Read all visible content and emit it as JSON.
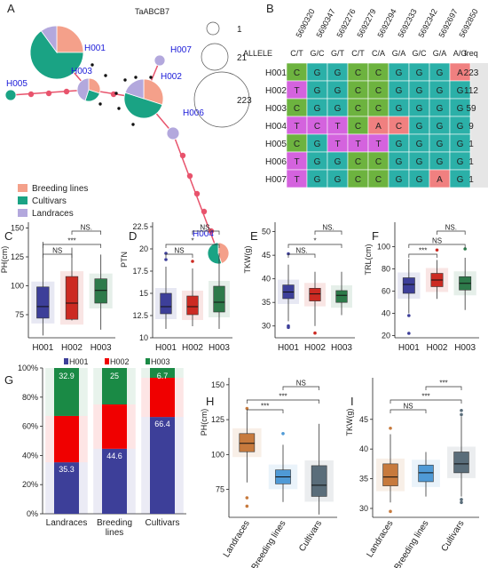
{
  "panels": {
    "A": {
      "letter": "A",
      "title": "TaABCB7",
      "nodes": [
        {
          "id": "H001",
          "label": "H001",
          "breeding": 0.25,
          "cultivars": 0.65,
          "landraces": 0.1
        },
        {
          "id": "H002",
          "label": "H002",
          "breeding": 0.3,
          "cultivars": 0.5,
          "landraces": 0.2
        },
        {
          "id": "H003",
          "label": "H003",
          "breeding": 0.3,
          "cultivars": 0.25,
          "landraces": 0.45
        },
        {
          "id": "H004",
          "label": "H004",
          "breeding": 0.45,
          "cultivars": 0.55,
          "landraces": 0.0
        },
        {
          "id": "H005",
          "label": "H005",
          "breeding": 0.0,
          "cultivars": 1.0,
          "landraces": 0.0
        },
        {
          "id": "H006",
          "label": "H006",
          "breeding": 0.0,
          "cultivars": 0.0,
          "landraces": 1.0
        },
        {
          "id": "H007",
          "label": "H007",
          "breeding": 0.0,
          "cultivars": 0.0,
          "landraces": 1.0
        }
      ],
      "size_legend": [
        "1",
        "21",
        "223"
      ],
      "legend": [
        {
          "label": "Breeding lines",
          "color": "#f4a08a"
        },
        {
          "label": "Cultivars",
          "color": "#1aa384"
        },
        {
          "label": "Landraces",
          "color": "#b3a8dd"
        }
      ]
    },
    "B": {
      "letter": "B",
      "positions": [
        "5690320",
        "5690347",
        "5692276",
        "5692279",
        "5692294",
        "5692333",
        "5692342",
        "5692697",
        "5692850"
      ],
      "allele_label": "ALLELE",
      "alleles": [
        "C/T",
        "G/C",
        "G/T",
        "C/T",
        "C/A",
        "G/A",
        "G/C",
        "G/A",
        "A/G"
      ],
      "freq_label": "freq",
      "rows": [
        {
          "name": "H001",
          "bases": [
            "C",
            "G",
            "G",
            "C",
            "C",
            "G",
            "G",
            "G",
            "A"
          ],
          "freq": "223"
        },
        {
          "name": "H002",
          "bases": [
            "T",
            "G",
            "G",
            "C",
            "C",
            "G",
            "G",
            "G",
            "G"
          ],
          "freq": "112"
        },
        {
          "name": "H003",
          "bases": [
            "C",
            "G",
            "G",
            "C",
            "C",
            "G",
            "G",
            "G",
            "G"
          ],
          "freq": "59"
        },
        {
          "name": "H004",
          "bases": [
            "T",
            "C",
            "T",
            "C",
            "A",
            "C",
            "G",
            "G",
            "G"
          ],
          "freq": "9"
        },
        {
          "name": "H005",
          "bases": [
            "C",
            "G",
            "T",
            "T",
            "T",
            "G",
            "G",
            "G",
            "G"
          ],
          "freq": "1"
        },
        {
          "name": "H006",
          "bases": [
            "T",
            "G",
            "G",
            "C",
            "C",
            "G",
            "G",
            "G",
            "G"
          ],
          "freq": "1"
        },
        {
          "name": "H007",
          "bases": [
            "T",
            "G",
            "G",
            "C",
            "C",
            "G",
            "G",
            "A",
            "G"
          ],
          "freq": "1"
        }
      ],
      "colors": {
        "C": "#2bb0a8",
        "T": "#d463de",
        "G": "#2bb0a8",
        "A": "#f08080",
        "C_green": "#6db33f"
      }
    }
  },
  "chart_data": [
    {
      "panel": "C",
      "type": "box",
      "categories": [
        "H001",
        "H002",
        "H003"
      ],
      "ylabel": "PH(cm)",
      "ylim": [
        55,
        155
      ],
      "yticks": [
        75,
        100,
        125,
        150
      ],
      "boxes": [
        {
          "min": 57,
          "q1": 72,
          "median": 82,
          "q3": 99,
          "max": 138,
          "color": "#3d3f99",
          "outliers": []
        },
        {
          "min": 70,
          "q1": 71,
          "median": 85,
          "q3": 108,
          "max": 133,
          "color": "#cc2a22",
          "outliers": []
        },
        {
          "min": 62,
          "q1": 85,
          "median": 96,
          "q3": 106,
          "max": 127,
          "color": "#2d7a4a",
          "outliers": []
        }
      ],
      "sig": [
        {
          "from": 0,
          "to": 1,
          "label": "NS"
        },
        {
          "from": 0,
          "to": 2,
          "label": "***"
        },
        {
          "from": 1,
          "to": 2,
          "label": "NS."
        }
      ]
    },
    {
      "panel": "D",
      "type": "box",
      "categories": [
        "H001",
        "H002",
        "H003"
      ],
      "ylabel": "PTN",
      "ylim": [
        10,
        23
      ],
      "yticks": [
        10,
        12.5,
        15,
        17.5,
        20,
        22.5
      ],
      "boxes": [
        {
          "min": 11,
          "q1": 12.7,
          "median": 13.5,
          "q3": 15,
          "max": 18,
          "color": "#3d3f99",
          "outliers": [
            19.5,
            18.8
          ]
        },
        {
          "min": 11.3,
          "q1": 12.6,
          "median": 13.5,
          "q3": 14.7,
          "max": 17.8,
          "color": "#cc2a22",
          "outliers": [
            18.6
          ]
        },
        {
          "min": 11,
          "q1": 12.9,
          "median": 14,
          "q3": 15.8,
          "max": 19.5,
          "color": "#2d7a4a",
          "outliers": []
        }
      ],
      "sig": [
        {
          "from": 0,
          "to": 1,
          "label": "NS"
        },
        {
          "from": 0,
          "to": 2,
          "label": "*"
        },
        {
          "from": 1,
          "to": 2,
          "label": "NS."
        }
      ]
    },
    {
      "panel": "E",
      "type": "box",
      "categories": [
        "H001",
        "H002",
        "H003"
      ],
      "ylabel": "TKW(g)",
      "ylim": [
        27.5,
        52
      ],
      "yticks": [
        30,
        35,
        40,
        45,
        50
      ],
      "boxes": [
        {
          "min": 31,
          "q1": 35.8,
          "median": 37.2,
          "q3": 38.7,
          "max": 43,
          "color": "#3d3f99",
          "outliers": [
            45.3,
            30,
            29.7
          ]
        },
        {
          "min": 30,
          "q1": 35.3,
          "median": 36.8,
          "q3": 38,
          "max": 41.5,
          "color": "#cc2a22",
          "outliers": [
            28.5
          ]
        },
        {
          "min": 32.3,
          "q1": 35,
          "median": 36.5,
          "q3": 37.5,
          "max": 41.5,
          "color": "#2d7a4a",
          "outliers": []
        }
      ],
      "sig": [
        {
          "from": 0,
          "to": 1,
          "label": "NS."
        },
        {
          "from": 0,
          "to": 2,
          "label": "*"
        },
        {
          "from": 1,
          "to": 2,
          "label": "NS."
        }
      ]
    },
    {
      "panel": "F",
      "type": "box",
      "categories": [
        "H001",
        "H002",
        "H003"
      ],
      "ylabel": "TRL(cm)",
      "ylim": [
        18,
        122
      ],
      "yticks": [
        20,
        40,
        60,
        80,
        100
      ],
      "boxes": [
        {
          "min": 40,
          "q1": 58,
          "median": 66,
          "q3": 72,
          "max": 89,
          "color": "#3d3f99",
          "outliers": [
            38,
            22
          ]
        },
        {
          "min": 53,
          "q1": 64,
          "median": 70,
          "q3": 76,
          "max": 88,
          "color": "#cc2a22",
          "outliers": [
            97
          ]
        },
        {
          "min": 43,
          "q1": 61,
          "median": 67,
          "q3": 73,
          "max": 90,
          "color": "#2d7a4a",
          "outliers": [
            98
          ]
        }
      ],
      "sig": [
        {
          "from": 0,
          "to": 1,
          "label": "***"
        },
        {
          "from": 0,
          "to": 2,
          "label": "NS"
        },
        {
          "from": 1,
          "to": 2,
          "label": "NS."
        }
      ]
    },
    {
      "panel": "G",
      "type": "stacked-bar",
      "categories": [
        "Landraces",
        "Breeding lines",
        "Cultivars"
      ],
      "ylim": [
        0,
        100
      ],
      "yticks": [
        "0%",
        "20%",
        "40%",
        "60%",
        "80%",
        "100%"
      ],
      "series": [
        {
          "name": "H001",
          "color": "#3d3f99",
          "values": [
            35.3,
            44.6,
            66.4
          ]
        },
        {
          "name": "H002",
          "color": "#f00000",
          "values": [
            31.8,
            30.4,
            26.9
          ]
        },
        {
          "name": "H003",
          "color": "#1a8a45",
          "values": [
            32.9,
            25,
            6.7
          ]
        }
      ],
      "labels": [
        {
          "series": 0,
          "cat": 0,
          "text": "35.3"
        },
        {
          "series": 0,
          "cat": 1,
          "text": "44.6"
        },
        {
          "series": 0,
          "cat": 2,
          "text": "66.4"
        },
        {
          "series": 2,
          "cat": 0,
          "text": "32.9"
        },
        {
          "series": 2,
          "cat": 1,
          "text": "25"
        },
        {
          "series": 2,
          "cat": 2,
          "text": "6.7"
        }
      ]
    },
    {
      "panel": "H",
      "type": "box",
      "categories": [
        "Landraces",
        "Breeding lines",
        "Cultivars"
      ],
      "ylabel": "PH(cm)",
      "ylim": [
        55,
        155
      ],
      "yticks": [
        75,
        100,
        125,
        150
      ],
      "boxes": [
        {
          "min": 80,
          "q1": 102,
          "median": 108,
          "q3": 115,
          "max": 130,
          "color": "#c77a3d",
          "outliers": [
            133,
            69,
            63
          ]
        },
        {
          "min": 66,
          "q1": 79,
          "median": 84,
          "q3": 89,
          "max": 107,
          "color": "#4f9ad6",
          "outliers": [
            115
          ]
        },
        {
          "min": 57,
          "q1": 70,
          "median": 78,
          "q3": 92,
          "max": 122,
          "color": "#5a6d7a",
          "outliers": []
        }
      ],
      "sig": [
        {
          "from": 0,
          "to": 1,
          "label": "***"
        },
        {
          "from": 0,
          "to": 2,
          "label": "***"
        },
        {
          "from": 1,
          "to": 2,
          "label": "NS"
        }
      ]
    },
    {
      "panel": "I",
      "type": "box",
      "categories": [
        "Landraces",
        "Breeding lines",
        "Cultivars"
      ],
      "ylabel": "TKW(g)",
      "ylim": [
        28.5,
        52
      ],
      "yticks": [
        30,
        35,
        40,
        45
      ],
      "boxes": [
        {
          "min": 31,
          "q1": 33.8,
          "median": 35.3,
          "q3": 37.5,
          "max": 42.5,
          "color": "#c77a3d",
          "outliers": [
            43.5,
            29.5
          ]
        },
        {
          "min": 32,
          "q1": 34.5,
          "median": 36,
          "q3": 37.3,
          "max": 39.5,
          "color": "#4f9ad6",
          "outliers": []
        },
        {
          "min": 32,
          "q1": 36,
          "median": 37.5,
          "q3": 39.5,
          "max": 45.5,
          "color": "#5a6d7a",
          "outliers": [
            46.5,
            45.8,
            31.5,
            31
          ]
        }
      ],
      "sig": [
        {
          "from": 0,
          "to": 1,
          "label": "NS"
        },
        {
          "from": 0,
          "to": 2,
          "label": "***"
        },
        {
          "from": 1,
          "to": 2,
          "label": "***"
        }
      ]
    }
  ]
}
